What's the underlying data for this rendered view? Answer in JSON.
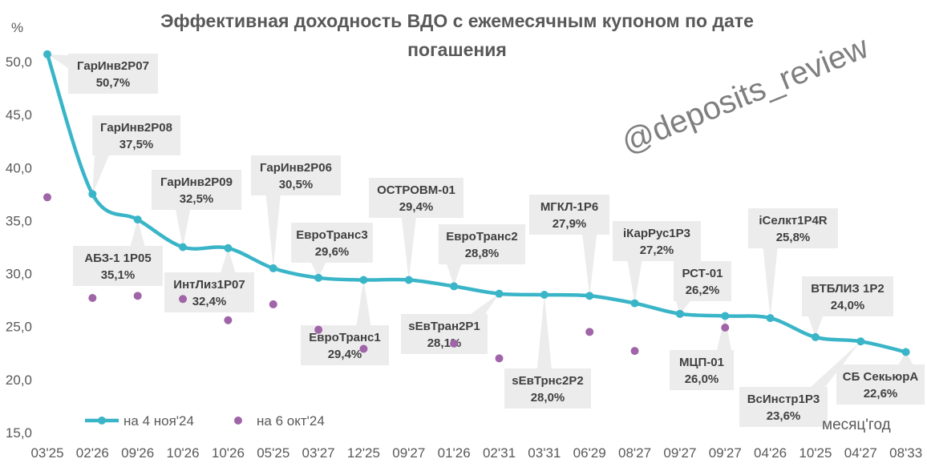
{
  "chart_data": {
    "type": "line",
    "title": "Эффективная доходность ВДО с ежемесячным купоном по дате погашения",
    "title_lines": [
      "Эффективная доходность ВДО с ежемесячным купоном по дате",
      "погашения"
    ],
    "y_unit": "%",
    "xlabel": "месяц'год",
    "ylabel": "%",
    "ylim": [
      15,
      51
    ],
    "yticks": [
      "15,0",
      "20,0",
      "25,0",
      "30,0",
      "35,0",
      "40,0",
      "45,0",
      "50,0"
    ],
    "ytick_values": [
      15,
      20,
      25,
      30,
      35,
      40,
      45,
      50
    ],
    "categories": [
      "03'25",
      "02'26",
      "09'26",
      "10'26",
      "10'26",
      "05'25",
      "03'27",
      "12'25",
      "09'27",
      "01'26",
      "02'31",
      "03'31",
      "06'29",
      "08'27",
      "09'27",
      "09'27",
      "04'26",
      "10'25",
      "04'27",
      "08'33"
    ],
    "series": [
      {
        "name": "на 4 ноя'24",
        "color": "#3ab5c8",
        "style": "smooth-line",
        "values": [
          50.7,
          37.5,
          35.1,
          32.5,
          32.4,
          30.5,
          29.6,
          29.4,
          29.4,
          28.8,
          28.1,
          28.0,
          27.9,
          27.2,
          26.2,
          26.0,
          25.8,
          24.0,
          23.6,
          22.6
        ],
        "labels": [
          {
            "name": "ГарИнв2Р07",
            "value": "50,7%"
          },
          {
            "name": "ГарИнв2Р08",
            "value": "37,5%"
          },
          {
            "name": "АБЗ-1 1Р05",
            "value": "35,1%"
          },
          {
            "name": "ГарИнв2Р09",
            "value": "32,5%"
          },
          {
            "name": "ИнтЛиз1Р07",
            "value": "32,4%"
          },
          {
            "name": "ГарИнв2Р06",
            "value": "30,5%"
          },
          {
            "name": "ЕвроТранс3",
            "value": "29,6%"
          },
          {
            "name": "ЕвроТранс1",
            "value": "29,4%"
          },
          {
            "name": "ОСТРОВМ-01",
            "value": "29,4%"
          },
          {
            "name": "ЕвроТранс2",
            "value": "28,8%"
          },
          {
            "name": "sЕвТран2Р1",
            "value": "28,1%"
          },
          {
            "name": "sЕвТрнс2Р2",
            "value": "28,0%"
          },
          {
            "name": "МГКЛ-1Р6",
            "value": "27,9%"
          },
          {
            "name": "iКарРус1Р3",
            "value": "27,2%"
          },
          {
            "name": "РСТ-01",
            "value": "26,2%"
          },
          {
            "name": "МЦП-01",
            "value": "26,0%"
          },
          {
            "name": "iСелкт1Р4R",
            "value": "25,8%"
          },
          {
            "name": "ВТБЛИЗ 1Р2",
            "value": "24,0%"
          },
          {
            "name": "ВсИнстр1Р3",
            "value": "23,6%"
          },
          {
            "name": "СБ СекьюрА",
            "value": "22,6%"
          }
        ]
      },
      {
        "name": "на 6 окт'24",
        "color": "#a064a8",
        "style": "markers",
        "values": [
          37.2,
          27.7,
          27.9,
          27.6,
          25.6,
          27.1,
          24.7,
          22.9,
          null,
          23.4,
          22.0,
          null,
          24.5,
          22.7,
          26.2,
          24.9,
          null,
          null,
          null,
          null
        ]
      }
    ],
    "legend_position": "bottom-left",
    "grid": false,
    "watermark": "@deposits_review"
  }
}
